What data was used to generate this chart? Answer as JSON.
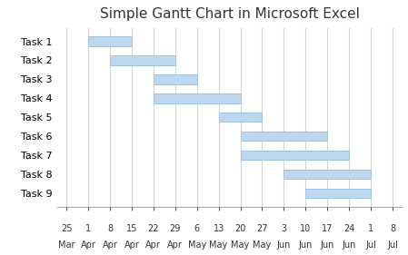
{
  "title": "Simple Gantt Chart in Microsoft Excel",
  "tasks": [
    "Task 1",
    "Task 2",
    "Task 3",
    "Task 4",
    "Task 5",
    "Task 6",
    "Task 7",
    "Task 8",
    "Task 9"
  ],
  "bars": [
    {
      "start": 7,
      "end": 21
    },
    {
      "start": 14,
      "end": 35
    },
    {
      "start": 28,
      "end": 42
    },
    {
      "start": 28,
      "end": 56
    },
    {
      "start": 49,
      "end": 63
    },
    {
      "start": 56,
      "end": 84
    },
    {
      "start": 56,
      "end": 91
    },
    {
      "start": 70,
      "end": 98
    },
    {
      "start": 77,
      "end": 98
    }
  ],
  "bar_color": "#bdd7ee",
  "bar_edge_color": "#9dc3e6",
  "tick_positions": [
    0,
    7,
    14,
    21,
    28,
    35,
    42,
    49,
    56,
    63,
    70,
    77,
    84,
    91,
    98,
    105
  ],
  "tick_labels_day": [
    "25",
    "1",
    "8",
    "15",
    "22",
    "29",
    "6",
    "13",
    "20",
    "27",
    "3",
    "10",
    "17",
    "24",
    "1",
    "8"
  ],
  "tick_labels_month": [
    "Mar",
    "Apr",
    "Apr",
    "Apr",
    "Apr",
    "Apr",
    "May",
    "May",
    "May",
    "May",
    "Jun",
    "Jun",
    "Jun",
    "Jun",
    "Jul",
    "Jul"
  ],
  "xlim": [
    -3,
    108
  ],
  "ylim": [
    -0.7,
    8.7
  ],
  "background_color": "#ffffff",
  "title_fontsize": 11,
  "tick_fontsize": 7,
  "task_fontsize": 8,
  "grid_color": "#d4d4d4",
  "bar_height": 0.5
}
